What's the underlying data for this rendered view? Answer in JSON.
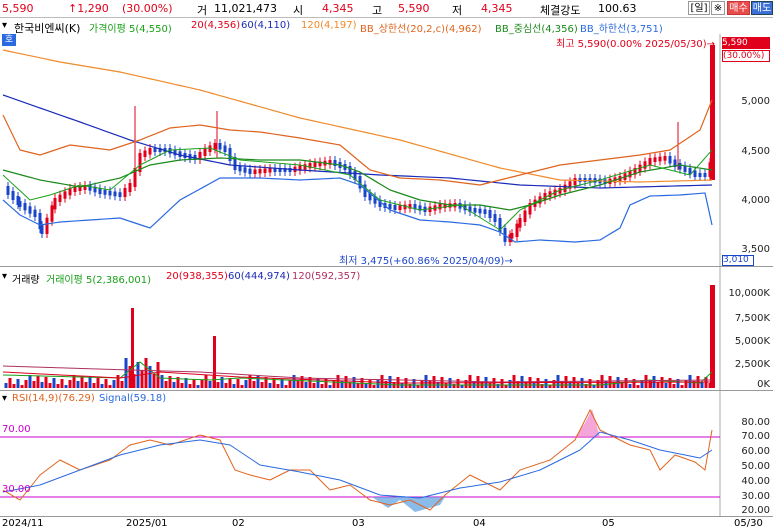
{
  "quote_bar": {
    "price": "5,590",
    "change": "↑1,290",
    "change_pct": "(30.00%)",
    "volume_label": "거",
    "volume": "11,021,473",
    "open_label": "시",
    "open": "4,345",
    "high_label": "고",
    "high": "5,590",
    "low_label": "저",
    "low": "4,345",
    "strength_label": "체결강도",
    "strength": "100.63",
    "period_button": "[일]",
    "star_button": "※",
    "buy_button": "매수",
    "sell_button": "매도"
  },
  "price_panel": {
    "stock_name": "한국비엔씨(K)",
    "tag": "호",
    "legend": [
      {
        "label": "가격이평 5(4,550)",
        "color": "#1aa01a"
      },
      {
        "label": "20(4,356)",
        "color": "#e0001b"
      },
      {
        "label": "60(4,110)",
        "color": "#1a2bb8"
      },
      {
        "label": "120(4,197)",
        "color": "#f08a2a"
      },
      {
        "label": "BB_상한선(20,2,c)(4,962)",
        "color": "#e0641e"
      },
      {
        "label": "BB_중심선(4,356)",
        "color": "#1a8a1a"
      },
      {
        "label": "BB_하한선(3,751)",
        "color": "#2a6ae0"
      }
    ],
    "high_note": "최고 5,590(0.00% 2025/05/30)→",
    "low_note": "최저 3,475(+60.86% 2025/04/09)→",
    "last_price_box": "5,590",
    "last_pct_box": "(30.00%)",
    "low_price_box": "3,010",
    "axis_ticks": [
      "5,000",
      "4,500",
      "4,000",
      "3,500"
    ]
  },
  "volume_panel": {
    "legend": [
      {
        "label": "거래량",
        "color": "#333333"
      },
      {
        "label": "거래이평 5(2,386,001)",
        "color": "#1aa01a"
      },
      {
        "label": "20(938,355)",
        "color": "#e0001b"
      },
      {
        "label": "60(444,974)",
        "color": "#1a2bb8"
      },
      {
        "label": "120(592,357)",
        "color": "#b03060"
      }
    ],
    "axis_ticks": [
      "10,000K",
      "7,500K",
      "5,000K",
      "2,500K",
      "0K"
    ]
  },
  "rsi_panel": {
    "legend": [
      {
        "label": "RSI(14,9)(76.29)",
        "color": "#e0641e"
      },
      {
        "label": "Signal(59.18)",
        "color": "#2a6ae0"
      }
    ],
    "upper_level": "70.00",
    "lower_level": "30.00",
    "axis_ticks": [
      "80.00",
      "70.00",
      "60.00",
      "50.00",
      "40.00",
      "30.00",
      "20.00"
    ]
  },
  "x_axis": [
    "2024/11",
    "2025/01",
    "02",
    "03",
    "04",
    "05",
    "05/30"
  ],
  "colors": {
    "up": "#e0001b",
    "down": "#1a45c8",
    "background": "#ffffff"
  }
}
